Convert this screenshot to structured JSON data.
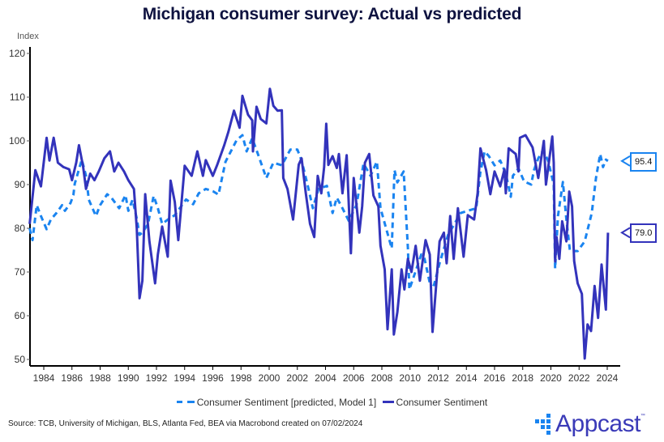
{
  "header": {
    "title": "Michigan consumer survey: Actual vs predicted"
  },
  "legend": {
    "predicted_label": "Consumer Sentiment [predicted, Model 1]",
    "actual_label": "Consumer Sentiment"
  },
  "footer": {
    "source": "Source: TCB, University of Michigan, BLS, Atlanta Fed, BEA via Macrobond created on 07/02/2024",
    "logo_text": "Appcast",
    "logo_tm": "™"
  },
  "end_labels": {
    "predicted": "95.4",
    "actual": "79.0"
  },
  "colors": {
    "predicted": "#1a84f0",
    "actual": "#3333bb",
    "title": "#0f1340"
  },
  "chart_data": {
    "type": "line",
    "title": "Michigan consumer survey: Actual vs predicted",
    "xlabel": "",
    "ylabel": "Index",
    "xlim": [
      1983.0,
      2024.9
    ],
    "ylim": [
      49,
      121
    ],
    "x_ticks": [
      1984,
      1986,
      1988,
      1990,
      1992,
      1994,
      1996,
      1998,
      2000,
      2002,
      2004,
      2006,
      2008,
      2010,
      2012,
      2014,
      2016,
      2018,
      2020,
      2022,
      2024
    ],
    "y_ticks": [
      50,
      60,
      70,
      80,
      90,
      100,
      110,
      120
    ],
    "grid": false,
    "legend_position": "bottom",
    "series": [
      {
        "name": "Consumer Sentiment [predicted, Model 1]",
        "style": "dashed",
        "color": "#1a84f0",
        "last_value": 95.4,
        "points": [
          [
            1983.0,
            80
          ],
          [
            1983.2,
            77.3
          ],
          [
            1983.5,
            85.3
          ],
          [
            1983.8,
            82.8
          ],
          [
            1984.2,
            79.8
          ],
          [
            1984.5,
            82
          ],
          [
            1984.9,
            83.5
          ],
          [
            1985.3,
            85.3
          ],
          [
            1985.5,
            84
          ],
          [
            1985.9,
            85.8
          ],
          [
            1986.1,
            87.6
          ],
          [
            1986.2,
            90.2
          ],
          [
            1986.7,
            95.7
          ],
          [
            1987.0,
            92
          ],
          [
            1987.2,
            86.5
          ],
          [
            1987.7,
            82.8
          ],
          [
            1988.0,
            85.3
          ],
          [
            1988.5,
            87.8
          ],
          [
            1988.8,
            87
          ],
          [
            1989.35,
            84.6
          ],
          [
            1989.8,
            87.6
          ],
          [
            1990.0,
            84
          ],
          [
            1990.3,
            86.5
          ],
          [
            1990.6,
            82.2
          ],
          [
            1990.8,
            78.5
          ],
          [
            1991.0,
            79
          ],
          [
            1991.4,
            81
          ],
          [
            1991.8,
            87.4
          ],
          [
            1992.1,
            84.6
          ],
          [
            1992.4,
            81
          ],
          [
            1992.9,
            82.2
          ],
          [
            1993.3,
            83
          ],
          [
            1994.1,
            86.6
          ],
          [
            1994.6,
            85.5
          ],
          [
            1995.0,
            88
          ],
          [
            1995.5,
            89
          ],
          [
            1996.0,
            88.5
          ],
          [
            1996.4,
            87.7
          ],
          [
            1996.9,
            95.2
          ],
          [
            1997.7,
            100.2
          ],
          [
            1998.1,
            101.3
          ],
          [
            1998.4,
            97.6
          ],
          [
            1998.8,
            100.6
          ],
          [
            1999.2,
            97
          ],
          [
            1999.8,
            91.5
          ],
          [
            2000.3,
            95
          ],
          [
            2000.9,
            94.4
          ],
          [
            2001.5,
            98
          ],
          [
            2002.0,
            98
          ],
          [
            2002.3,
            95.5
          ],
          [
            2002.75,
            89.6
          ],
          [
            2003.1,
            84.6
          ],
          [
            2003.5,
            89
          ],
          [
            2004.1,
            89.7
          ],
          [
            2004.5,
            83.5
          ],
          [
            2004.8,
            87
          ],
          [
            2005.2,
            84.6
          ],
          [
            2005.65,
            81.7
          ],
          [
            2006.2,
            85.3
          ],
          [
            2006.7,
            94.8
          ],
          [
            2007.2,
            92
          ],
          [
            2007.65,
            95.3
          ],
          [
            2007.9,
            84.6
          ],
          [
            2008.3,
            80
          ],
          [
            2008.7,
            75.4
          ],
          [
            2008.9,
            93.3
          ],
          [
            2009.1,
            90.5
          ],
          [
            2009.55,
            93
          ],
          [
            2009.85,
            75.5
          ],
          [
            2009.95,
            66
          ],
          [
            2010.3,
            69.3
          ],
          [
            2010.8,
            74
          ],
          [
            2011.0,
            73.5
          ],
          [
            2011.4,
            67.5
          ],
          [
            2011.7,
            67
          ],
          [
            2012.1,
            72
          ],
          [
            2012.7,
            78.5
          ],
          [
            2013.6,
            83.5
          ],
          [
            2014.7,
            84.6
          ],
          [
            2015.0,
            93
          ],
          [
            2015.3,
            97.6
          ],
          [
            2015.6,
            96.5
          ],
          [
            2016.0,
            94.4
          ],
          [
            2016.4,
            95.5
          ],
          [
            2016.8,
            92.5
          ],
          [
            2017.15,
            87.2
          ],
          [
            2017.3,
            92
          ],
          [
            2017.7,
            93.7
          ],
          [
            2018.1,
            90.7
          ],
          [
            2018.6,
            90
          ],
          [
            2018.8,
            93.3
          ],
          [
            2019.1,
            96
          ],
          [
            2019.45,
            97.8
          ],
          [
            2019.8,
            95.5
          ],
          [
            2020.2,
            90
          ],
          [
            2020.3,
            70.8
          ],
          [
            2020.5,
            82.8
          ],
          [
            2020.85,
            90.6
          ],
          [
            2021.1,
            82
          ],
          [
            2021.35,
            74.8
          ],
          [
            2021.9,
            74.8
          ],
          [
            2022.4,
            77
          ],
          [
            2022.9,
            83.5
          ],
          [
            2023.2,
            91.5
          ],
          [
            2023.5,
            97
          ],
          [
            2023.7,
            94
          ],
          [
            2023.9,
            95.7
          ],
          [
            2024.05,
            95.4
          ]
        ]
      },
      {
        "name": "Consumer Sentiment",
        "style": "solid",
        "color": "#3333bb",
        "last_value": 79.0,
        "points": [
          [
            1983.0,
            81
          ],
          [
            1983.4,
            93.3
          ],
          [
            1983.8,
            89.6
          ],
          [
            1984.2,
            100.7
          ],
          [
            1984.4,
            95.5
          ],
          [
            1984.7,
            100.7
          ],
          [
            1985.0,
            95
          ],
          [
            1985.4,
            94
          ],
          [
            1985.8,
            93.5
          ],
          [
            1986.0,
            91
          ],
          [
            1986.3,
            95
          ],
          [
            1986.5,
            99
          ],
          [
            1986.8,
            94
          ],
          [
            1987.0,
            89
          ],
          [
            1987.3,
            92.5
          ],
          [
            1987.6,
            91
          ],
          [
            1987.9,
            93
          ],
          [
            1988.3,
            96
          ],
          [
            1988.7,
            97.6
          ],
          [
            1989.0,
            93
          ],
          [
            1989.3,
            95
          ],
          [
            1989.7,
            93
          ],
          [
            1990.0,
            91
          ],
          [
            1990.4,
            89
          ],
          [
            1990.6,
            80
          ],
          [
            1990.8,
            64
          ],
          [
            1991.0,
            68
          ],
          [
            1991.2,
            87.8
          ],
          [
            1991.5,
            77
          ],
          [
            1991.9,
            67.4
          ],
          [
            1992.1,
            74
          ],
          [
            1992.4,
            80.4
          ],
          [
            1992.8,
            73.5
          ],
          [
            1993.0,
            90.9
          ],
          [
            1993.3,
            86
          ],
          [
            1993.55,
            77.3
          ],
          [
            1994.0,
            94.3
          ],
          [
            1994.5,
            92
          ],
          [
            1994.9,
            97.6
          ],
          [
            1995.3,
            92
          ],
          [
            1995.5,
            95.6
          ],
          [
            1996.0,
            92
          ],
          [
            1996.3,
            94.4
          ],
          [
            1996.8,
            98.9
          ],
          [
            1997.1,
            102
          ],
          [
            1997.5,
            106.9
          ],
          [
            1997.9,
            103
          ],
          [
            1998.1,
            110.3
          ],
          [
            1998.5,
            106
          ],
          [
            1998.8,
            104.7
          ],
          [
            1998.85,
            97.6
          ],
          [
            1999.1,
            107.8
          ],
          [
            1999.4,
            105
          ],
          [
            1999.8,
            104
          ],
          [
            2000.05,
            111.9
          ],
          [
            2000.3,
            108
          ],
          [
            2000.6,
            106.9
          ],
          [
            2000.9,
            107
          ],
          [
            2001.0,
            91.5
          ],
          [
            2001.3,
            89
          ],
          [
            2001.7,
            82
          ],
          [
            2002.1,
            94.6
          ],
          [
            2002.3,
            96
          ],
          [
            2002.6,
            88
          ],
          [
            2002.9,
            81
          ],
          [
            2003.2,
            78
          ],
          [
            2003.45,
            92
          ],
          [
            2003.7,
            88
          ],
          [
            2003.9,
            94
          ],
          [
            2004.05,
            103.9
          ],
          [
            2004.2,
            94.5
          ],
          [
            2004.5,
            96.5
          ],
          [
            2004.8,
            93.8
          ],
          [
            2004.95,
            97
          ],
          [
            2005.2,
            88
          ],
          [
            2005.5,
            96.7
          ],
          [
            2005.8,
            74.3
          ],
          [
            2006.0,
            91.5
          ],
          [
            2006.4,
            79
          ],
          [
            2006.6,
            85
          ],
          [
            2006.8,
            95
          ],
          [
            2007.1,
            97
          ],
          [
            2007.4,
            87.5
          ],
          [
            2007.75,
            85
          ],
          [
            2007.9,
            76
          ],
          [
            2008.2,
            70.6
          ],
          [
            2008.4,
            56.9
          ],
          [
            2008.7,
            70.6
          ],
          [
            2008.85,
            55.7
          ],
          [
            2009.1,
            60.8
          ],
          [
            2009.4,
            70.6
          ],
          [
            2009.6,
            66
          ],
          [
            2009.85,
            73
          ],
          [
            2010.1,
            70
          ],
          [
            2010.4,
            76
          ],
          [
            2010.7,
            68
          ],
          [
            2011.1,
            77.3
          ],
          [
            2011.4,
            74
          ],
          [
            2011.6,
            56.3
          ],
          [
            2012.1,
            77
          ],
          [
            2012.4,
            79
          ],
          [
            2012.6,
            72
          ],
          [
            2012.85,
            82.8
          ],
          [
            2013.1,
            73
          ],
          [
            2013.4,
            84.6
          ],
          [
            2013.8,
            73.5
          ],
          [
            2014.1,
            83
          ],
          [
            2014.55,
            82
          ],
          [
            2014.8,
            88
          ],
          [
            2015.0,
            98.3
          ],
          [
            2015.4,
            93.3
          ],
          [
            2015.7,
            87.8
          ],
          [
            2016.0,
            93
          ],
          [
            2016.4,
            89.6
          ],
          [
            2016.7,
            93.5
          ],
          [
            2016.8,
            88
          ],
          [
            2017.0,
            98.3
          ],
          [
            2017.5,
            97
          ],
          [
            2017.7,
            93
          ],
          [
            2017.8,
            100.7
          ],
          [
            2018.2,
            101.3
          ],
          [
            2018.7,
            98.5
          ],
          [
            2019.1,
            91.5
          ],
          [
            2019.5,
            100
          ],
          [
            2019.65,
            90
          ],
          [
            2020.1,
            101
          ],
          [
            2020.2,
            95
          ],
          [
            2020.3,
            72.4
          ],
          [
            2020.4,
            78
          ],
          [
            2020.6,
            73
          ],
          [
            2020.8,
            81.6
          ],
          [
            2021.1,
            77
          ],
          [
            2021.3,
            88.4
          ],
          [
            2021.5,
            85
          ],
          [
            2021.65,
            72.5
          ],
          [
            2021.9,
            67.4
          ],
          [
            2022.2,
            65
          ],
          [
            2022.4,
            50.2
          ],
          [
            2022.6,
            58
          ],
          [
            2022.85,
            56.5
          ],
          [
            2023.1,
            66.8
          ],
          [
            2023.35,
            59.5
          ],
          [
            2023.6,
            71.7
          ],
          [
            2023.9,
            61.4
          ],
          [
            2024.05,
            79
          ]
        ]
      }
    ]
  }
}
